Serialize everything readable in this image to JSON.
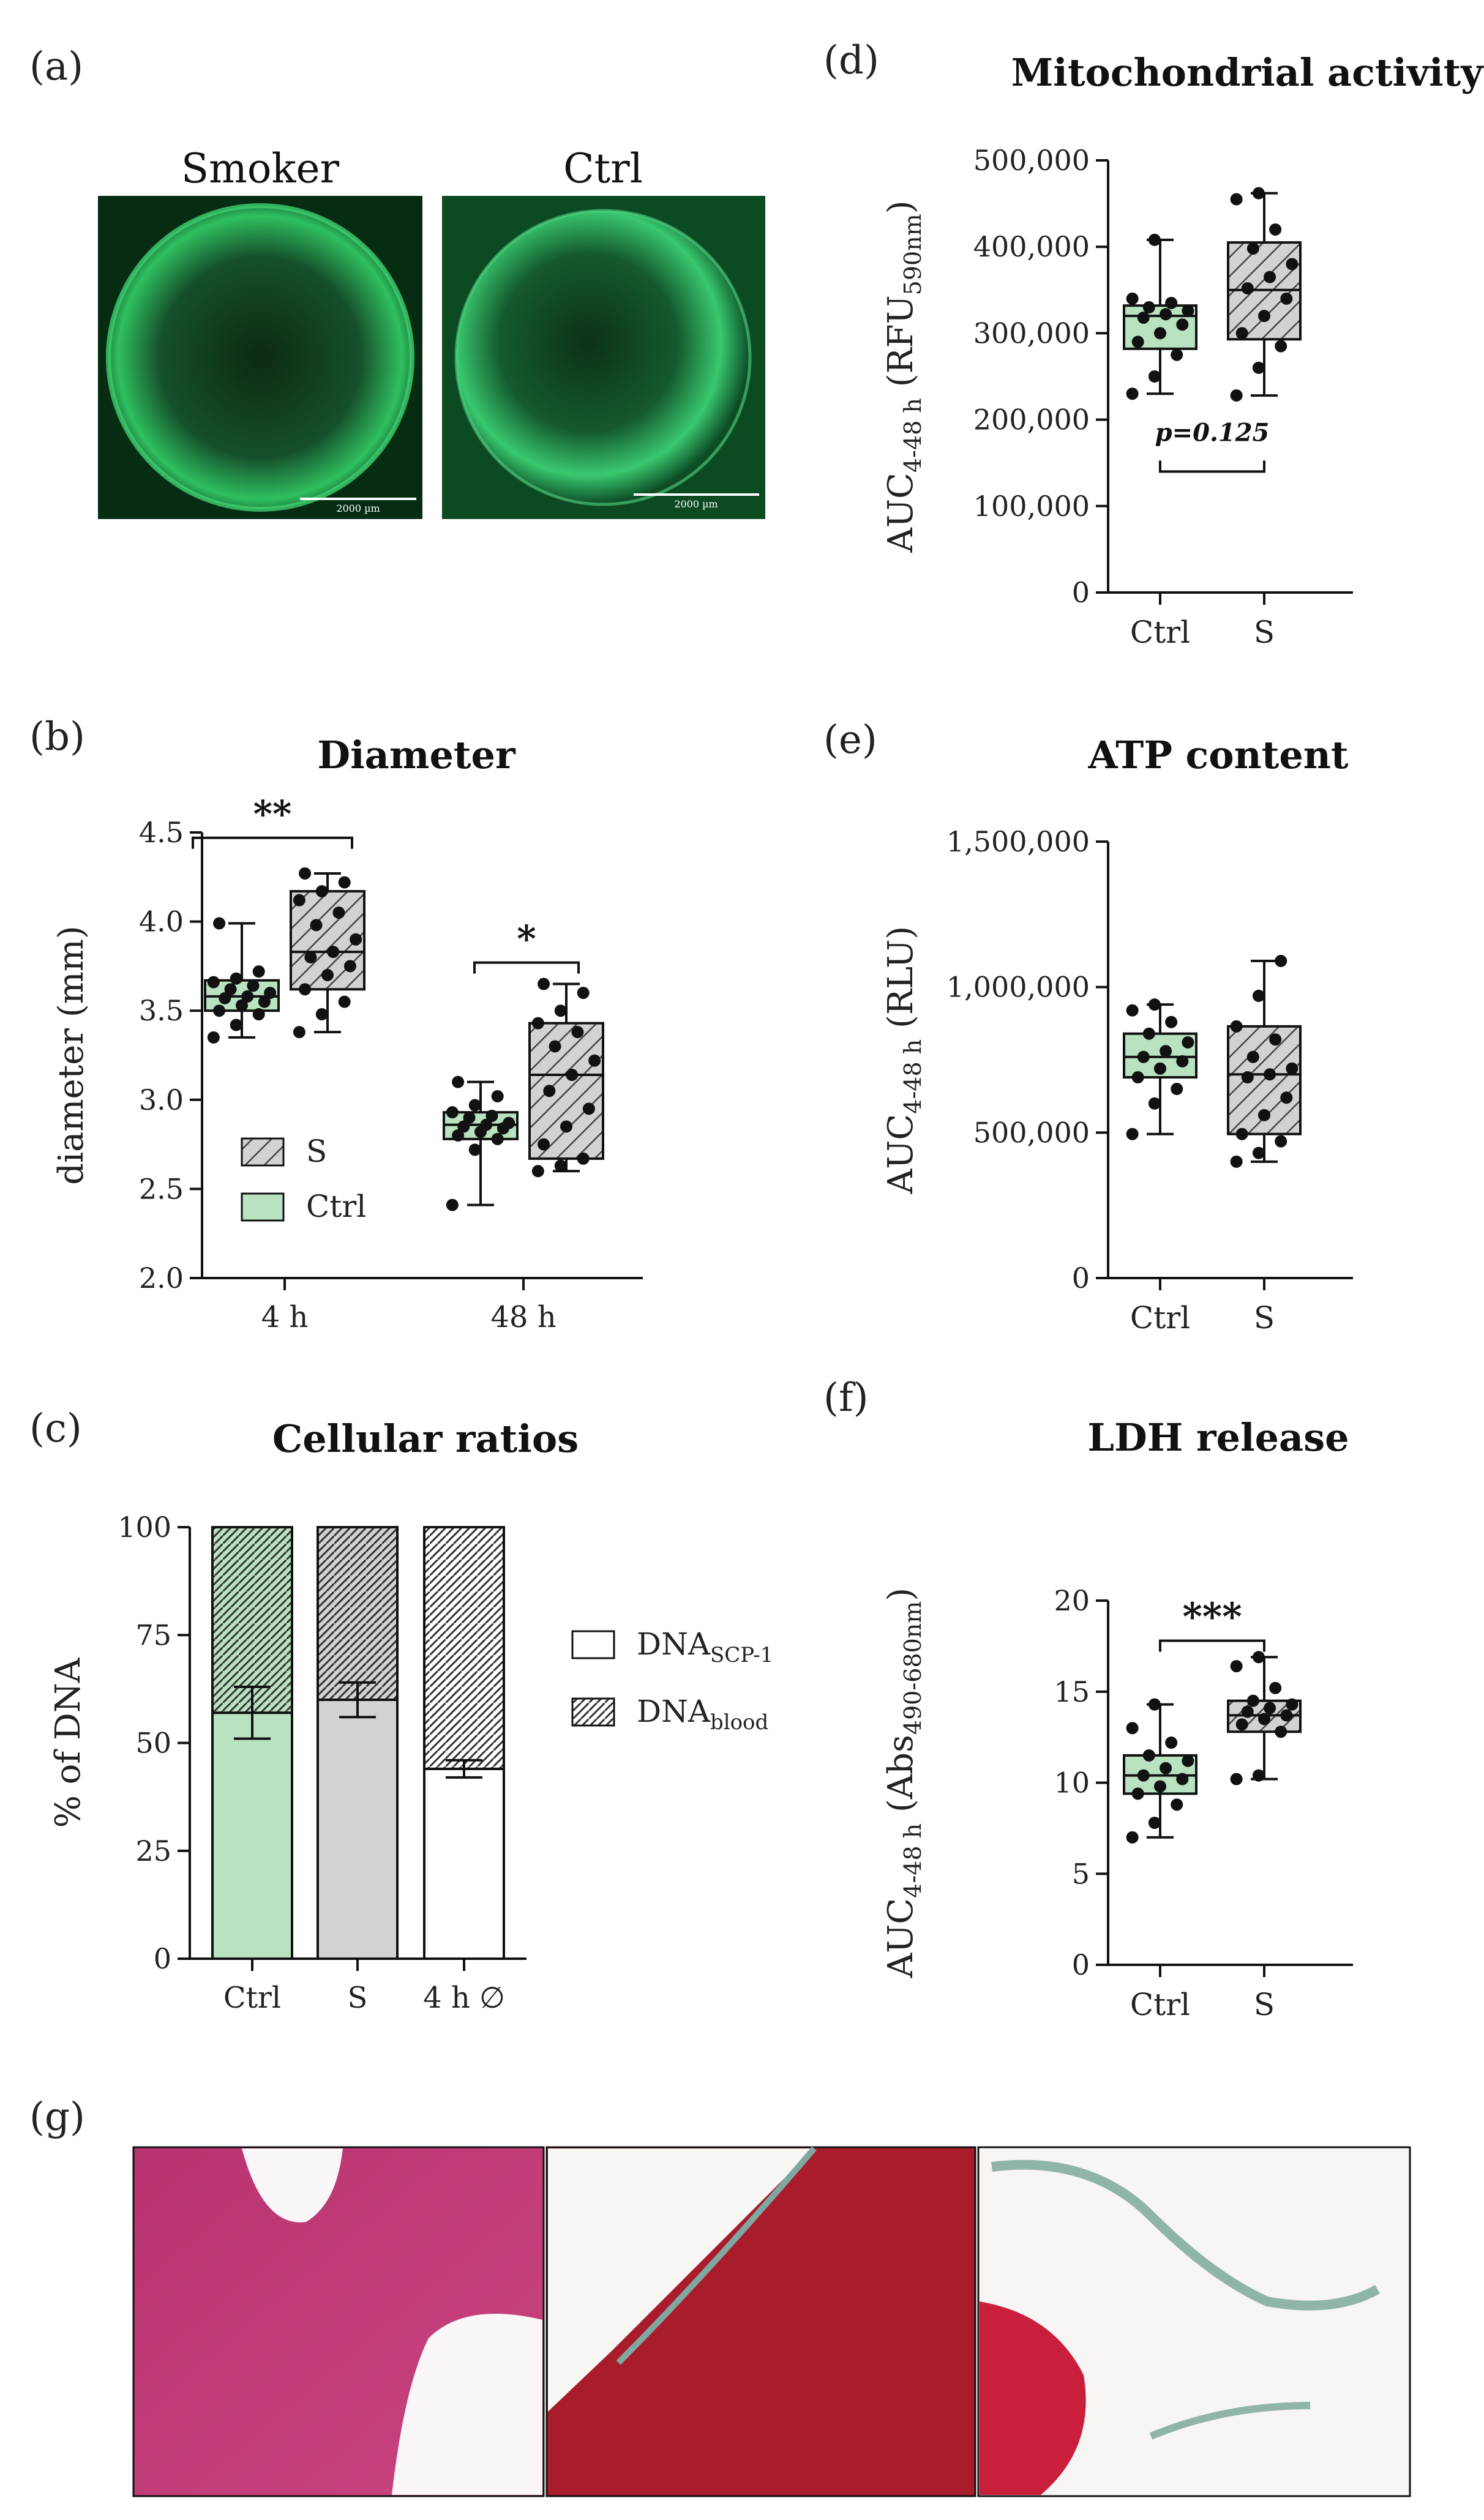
{
  "panels": {
    "a": {
      "label": "(a)",
      "images": [
        {
          "title": "Smoker",
          "scale": "2000 µm"
        },
        {
          "title": "Ctrl",
          "scale": "2000 µm"
        }
      ]
    },
    "g": {
      "label": "(g)"
    }
  },
  "colors": {
    "ctrl_fill": "#b9e3c0",
    "s_fill": "#d4d4d4",
    "axis": "#111111",
    "blood_fill": "#ffffff"
  },
  "chart_data": [
    {
      "id": "b",
      "panel_label": "(b)",
      "type": "box",
      "title": "Diameter",
      "ylabel": "diameter (mm)",
      "ylim": [
        2.0,
        4.5
      ],
      "yticks": [
        "2.0",
        "2.5",
        "3.0",
        "3.5",
        "4.0",
        "4.5"
      ],
      "categories": [
        "4 h",
        "48 h"
      ],
      "legend": {
        "entries": [
          "S",
          "Ctrl"
        ],
        "position": "bottom-left"
      },
      "series": [
        {
          "name": "Ctrl",
          "boxes": [
            {
              "min": 3.35,
              "q1": 3.5,
              "median": 3.58,
              "q3": 3.67,
              "max": 3.99,
              "points": [
                3.35,
                3.42,
                3.48,
                3.5,
                3.53,
                3.55,
                3.57,
                3.58,
                3.6,
                3.62,
                3.64,
                3.66,
                3.68,
                3.72,
                3.99
              ]
            },
            {
              "min": 2.41,
              "q1": 2.78,
              "median": 2.86,
              "q3": 2.93,
              "max": 3.1,
              "points": [
                2.41,
                2.72,
                2.78,
                2.8,
                2.82,
                2.84,
                2.85,
                2.86,
                2.87,
                2.9,
                2.91,
                2.93,
                2.97,
                3.02,
                3.1
              ]
            }
          ]
        },
        {
          "name": "S",
          "boxes": [
            {
              "min": 3.38,
              "q1": 3.62,
              "median": 3.83,
              "q3": 4.17,
              "max": 4.27,
              "points": [
                3.38,
                3.48,
                3.55,
                3.62,
                3.7,
                3.75,
                3.8,
                3.83,
                3.9,
                3.98,
                4.05,
                4.12,
                4.17,
                4.22,
                4.27
              ]
            },
            {
              "min": 2.6,
              "q1": 2.67,
              "median": 3.14,
              "q3": 3.43,
              "max": 3.65,
              "points": [
                2.6,
                2.63,
                2.67,
                2.75,
                2.85,
                2.95,
                3.05,
                3.14,
                3.22,
                3.3,
                3.38,
                3.43,
                3.5,
                3.6,
                3.65
              ]
            }
          ]
        }
      ],
      "annotations": [
        {
          "text": "**",
          "group": 0
        },
        {
          "text": "*",
          "group": 1
        }
      ]
    },
    {
      "id": "c",
      "panel_label": "(c)",
      "type": "stacked-bar",
      "title": "Cellular ratios",
      "ylabel": "% of DNA",
      "ylim": [
        0,
        100
      ],
      "yticks": [
        "0",
        "25",
        "50",
        "75",
        "100"
      ],
      "categories": [
        "Ctrl",
        "S",
        "4 h ∅"
      ],
      "series": [
        {
          "name": "DNA",
          "subscript": "SCP-1",
          "values": [
            57,
            60,
            44
          ],
          "errors": [
            6,
            4,
            2
          ]
        },
        {
          "name": "DNA",
          "subscript": "blood",
          "values": [
            43,
            40,
            56
          ]
        }
      ],
      "legend": {
        "position": "right"
      }
    },
    {
      "id": "d",
      "panel_label": "(d)",
      "type": "box",
      "title": "Mitochondrial activity",
      "ylabel": "AUC",
      "ylabel_sub": "4-48 h",
      "ylabel_rest": " (RFU",
      "ylabel_sub2": "590nm",
      "ylabel_end": ")",
      "ylim": [
        0,
        500000
      ],
      "yticks": [
        "0",
        "100,000",
        "200,000",
        "300,000",
        "400,000",
        "500,000"
      ],
      "categories": [
        "Ctrl",
        "S"
      ],
      "boxes": [
        {
          "min": 230000,
          "q1": 282000,
          "median": 320000,
          "q3": 332000,
          "max": 408000,
          "points": [
            230000,
            250000,
            275000,
            290000,
            300000,
            310000,
            318000,
            322000,
            326000,
            330000,
            335000,
            340000,
            408000
          ]
        },
        {
          "min": 228000,
          "q1": 293000,
          "median": 350000,
          "q3": 405000,
          "max": 462000,
          "points": [
            228000,
            260000,
            285000,
            300000,
            320000,
            340000,
            352000,
            365000,
            380000,
            398000,
            420000,
            455000,
            462000
          ]
        }
      ],
      "annotations": [
        {
          "text": "p=0.125",
          "style": "bottom-bracket"
        }
      ]
    },
    {
      "id": "e",
      "panel_label": "(e)",
      "type": "box",
      "title": "ATP content",
      "ylabel": "AUC",
      "ylabel_sub": "4-48 h",
      "ylabel_rest": " (RLU)",
      "ylim": [
        0,
        1500000
      ],
      "yticks": [
        "0",
        "500,000",
        "1,000,000",
        "1,500,000"
      ],
      "categories": [
        "Ctrl",
        "S"
      ],
      "boxes": [
        {
          "min": 495000,
          "q1": 690000,
          "median": 760000,
          "q3": 840000,
          "max": 940000,
          "points": [
            495000,
            600000,
            650000,
            690000,
            720000,
            745000,
            760000,
            780000,
            810000,
            840000,
            880000,
            920000,
            940000
          ]
        },
        {
          "min": 400000,
          "q1": 495000,
          "median": 700000,
          "q3": 865000,
          "max": 1090000,
          "points": [
            400000,
            430000,
            470000,
            495000,
            560000,
            620000,
            690000,
            700000,
            720000,
            760000,
            820000,
            865000,
            970000,
            1090000
          ]
        }
      ],
      "annotations": []
    },
    {
      "id": "f",
      "panel_label": "(f)",
      "type": "box",
      "title": "LDH release",
      "ylabel": "AUC",
      "ylabel_sub": "4-48 h",
      "ylabel_rest": " (Abs",
      "ylabel_sub2": "490-680nm",
      "ylabel_end": ")",
      "ylim": [
        0,
        20
      ],
      "yticks": [
        "0",
        "5",
        "10",
        "15",
        "20"
      ],
      "categories": [
        "Ctrl",
        "S"
      ],
      "boxes": [
        {
          "min": 7.0,
          "q1": 9.4,
          "median": 10.4,
          "q3": 11.5,
          "max": 14.3,
          "points": [
            7.0,
            7.8,
            8.8,
            9.4,
            9.8,
            10.2,
            10.4,
            10.8,
            11.2,
            11.5,
            12.2,
            13.0,
            14.3
          ]
        },
        {
          "min": 10.2,
          "q1": 12.8,
          "median": 13.7,
          "q3": 14.5,
          "max": 16.9,
          "points": [
            10.2,
            10.4,
            12.8,
            13.2,
            13.5,
            13.7,
            13.9,
            14.1,
            14.3,
            14.5,
            15.2,
            16.4,
            16.9
          ]
        }
      ],
      "annotations": [
        {
          "text": "***",
          "style": "top-bracket"
        }
      ]
    }
  ]
}
